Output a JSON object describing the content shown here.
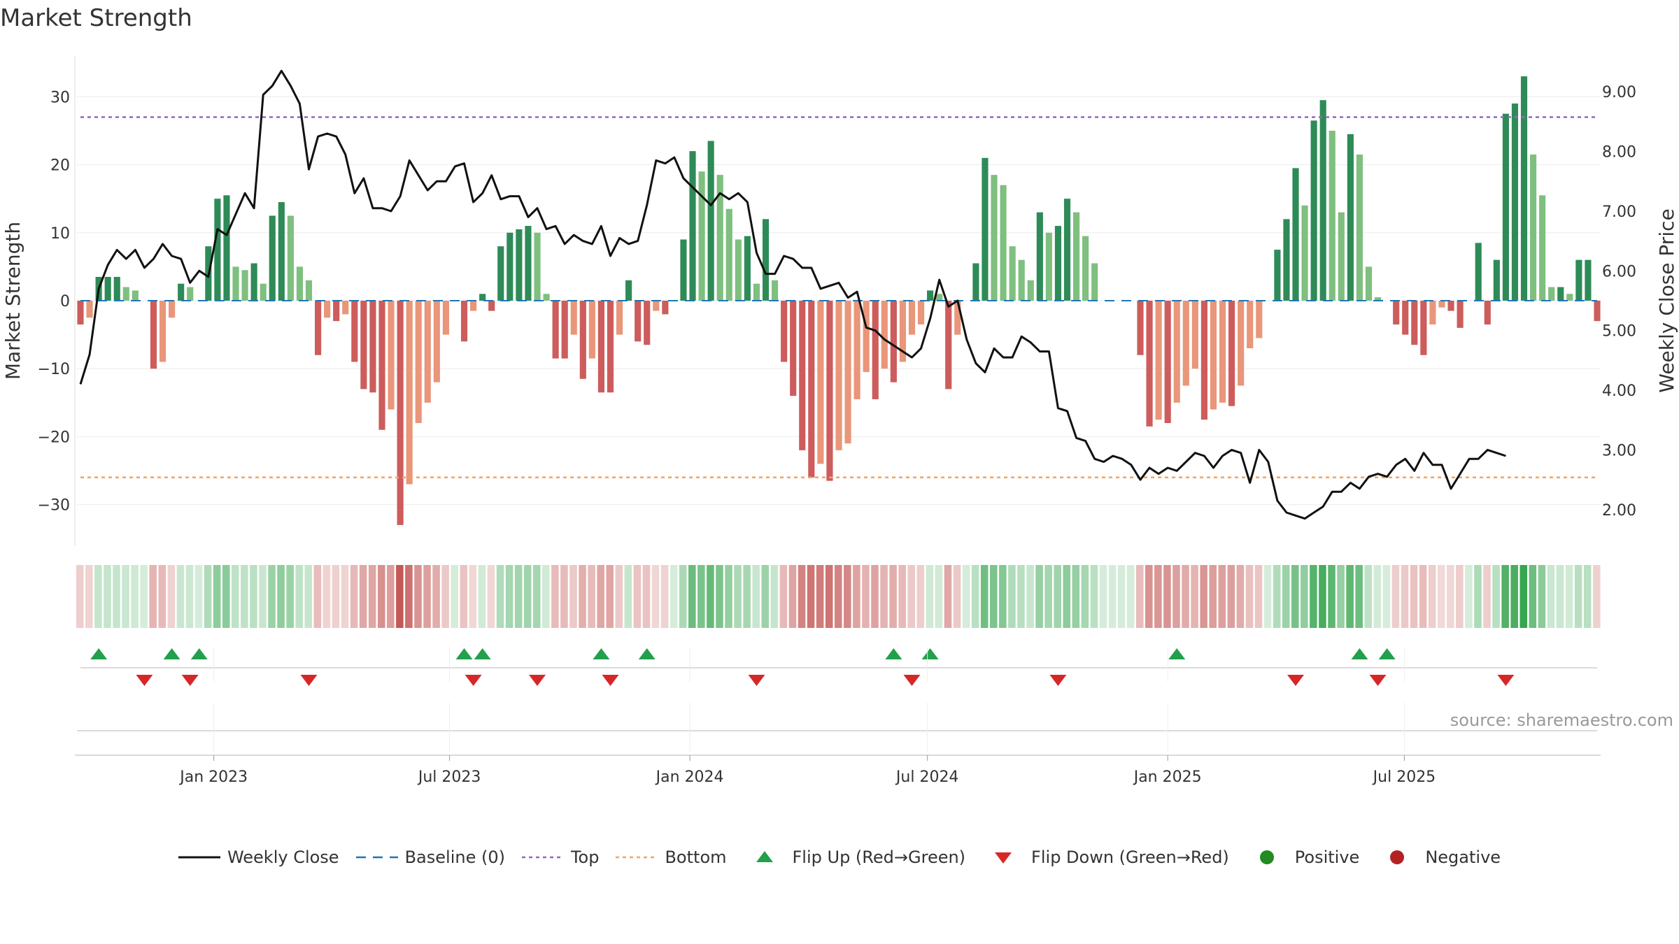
{
  "title": "Market Strength",
  "source": "source: sharemaestro.com",
  "colors": {
    "pos_strong": "#2e8b57",
    "pos_weak": "#7fbf7f",
    "neg_strong": "#cd5c5c",
    "neg_weak": "#e9967a",
    "line": "#111111",
    "baseline": "#1f77b4",
    "top": "#9467bd",
    "bottom": "#f4a460",
    "flip_up": "#22a04b",
    "flip_down": "#d62728",
    "positive": "#228b22",
    "negative": "#b22222"
  },
  "chart_data": {
    "type": "bar",
    "title": "Market Strength",
    "ylabel_left": "Market Strength",
    "ylabel_right": "Weekly Close Price",
    "ylim_left": [
      -36,
      36
    ],
    "ylim_right": [
      1.4,
      9.6
    ],
    "yticks_left": [
      30,
      20,
      10,
      0,
      -10,
      -20,
      -30
    ],
    "ytick_labels_left": [
      "30",
      "20",
      "10",
      "0",
      "−10",
      "−20",
      "−30"
    ],
    "yticks_right": [
      9.0,
      8.0,
      7.0,
      6.0,
      5.0,
      4.0,
      3.0,
      2.0
    ],
    "ytick_labels_right": [
      "9.00",
      "8.00",
      "7.00",
      "6.00",
      "5.00",
      "4.00",
      "3.00",
      "2.00"
    ],
    "x_start_week": 0,
    "xticks": [
      {
        "week": 14.6,
        "label": "Jan 2023"
      },
      {
        "week": 40.4,
        "label": "Jul 2023"
      },
      {
        "week": 66.7,
        "label": "Jan 2024"
      },
      {
        "week": 92.7,
        "label": "Jul 2024"
      },
      {
        "week": 119,
        "label": "Jan 2025"
      },
      {
        "week": 144.9,
        "label": "Jul 2025"
      }
    ],
    "top_level": 27,
    "bottom_level": -26,
    "strength": [
      -3.5,
      -2.5,
      3.5,
      3.5,
      3.5,
      2,
      1.5,
      0,
      -10,
      -9,
      -2.5,
      2.5,
      2,
      0,
      8,
      15,
      15.5,
      5,
      4.5,
      5.5,
      2.5,
      12.5,
      14.5,
      12.5,
      5,
      3,
      -8,
      -2.5,
      -3,
      -2,
      -9,
      -13,
      -13.5,
      -19,
      -16,
      -33,
      -27,
      -18,
      -15,
      -12,
      -5,
      0,
      -6,
      -1.5,
      1,
      -1.5,
      8,
      10,
      10.5,
      11,
      10,
      1,
      -8.5,
      -8.5,
      -5,
      -11.5,
      -8.5,
      -13.5,
      -13.5,
      -5,
      3,
      -6,
      -6.5,
      -1.5,
      -2,
      0,
      9,
      22,
      19,
      23.5,
      18.5,
      13.5,
      9,
      9.5,
      2.5,
      12,
      3,
      -9,
      -14,
      -22,
      -26,
      -24,
      -26.5,
      -22,
      -21,
      -14.5,
      -10.5,
      -14.5,
      -10,
      -12,
      -9,
      -5,
      -3.5,
      1.5,
      1,
      -13,
      -5,
      0,
      5.5,
      21,
      18.5,
      17,
      8,
      6,
      3,
      13,
      10,
      11,
      15,
      13,
      9.5,
      5.5,
      0,
      0,
      0,
      0,
      -8,
      -18.5,
      -17.5,
      -18,
      -15,
      -12.5,
      -10,
      -17.5,
      -16,
      -15,
      -15.5,
      -12.5,
      -7,
      -5.5,
      0,
      7.5,
      12,
      19.5,
      14,
      26.5,
      29.5,
      25,
      13,
      24.5,
      21.5,
      5,
      0.5,
      0,
      -3.5,
      -5,
      -6.5,
      -8,
      -3.5,
      -1,
      -1.5,
      -4,
      0,
      8.5,
      -3.5,
      6,
      27.5,
      29,
      33,
      21.5,
      15.5,
      2,
      2,
      1,
      6,
      6,
      -3
    ],
    "flip_up_weeks": [
      2,
      10,
      13,
      42,
      44,
      57,
      62,
      89,
      93,
      120,
      140,
      143
    ],
    "flip_down_weeks": [
      7,
      12,
      25,
      43,
      50,
      58,
      74,
      91,
      107,
      133,
      142,
      156
    ],
    "close": [
      [
        0,
        4.1
      ],
      [
        1,
        4.6
      ],
      [
        2,
        5.7
      ],
      [
        3,
        6.1
      ],
      [
        4,
        6.35
      ],
      [
        5,
        6.2
      ],
      [
        6,
        6.35
      ],
      [
        7,
        6.05
      ],
      [
        8,
        6.2
      ],
      [
        9,
        6.45
      ],
      [
        10,
        6.25
      ],
      [
        11,
        6.2
      ],
      [
        12,
        5.8
      ],
      [
        13,
        6.0
      ],
      [
        14,
        5.9
      ],
      [
        15,
        6.7
      ],
      [
        16,
        6.6
      ],
      [
        17,
        6.95
      ],
      [
        18,
        7.3
      ],
      [
        19,
        7.05
      ],
      [
        20,
        8.95
      ],
      [
        21,
        9.1
      ],
      [
        22,
        9.35
      ],
      [
        23,
        9.1
      ],
      [
        24,
        8.8
      ],
      [
        25,
        7.7
      ],
      [
        26,
        8.25
      ],
      [
        27,
        8.3
      ],
      [
        28,
        8.25
      ],
      [
        29,
        7.95
      ],
      [
        30,
        7.3
      ],
      [
        31,
        7.55
      ],
      [
        32,
        7.05
      ],
      [
        33,
        7.05
      ],
      [
        34,
        7.0
      ],
      [
        35,
        7.25
      ],
      [
        36,
        7.85
      ],
      [
        37,
        7.6
      ],
      [
        38,
        7.35
      ],
      [
        39,
        7.5
      ],
      [
        40,
        7.5
      ],
      [
        41,
        7.75
      ],
      [
        42,
        7.8
      ],
      [
        43,
        7.15
      ],
      [
        44,
        7.3
      ],
      [
        45,
        7.6
      ],
      [
        46,
        7.2
      ],
      [
        47,
        7.25
      ],
      [
        48,
        7.25
      ],
      [
        49,
        6.9
      ],
      [
        50,
        7.05
      ],
      [
        51,
        6.7
      ],
      [
        52,
        6.75
      ],
      [
        53,
        6.45
      ],
      [
        54,
        6.6
      ],
      [
        55,
        6.5
      ],
      [
        56,
        6.45
      ],
      [
        57,
        6.75
      ],
      [
        58,
        6.25
      ],
      [
        59,
        6.55
      ],
      [
        60,
        6.45
      ],
      [
        61,
        6.5
      ],
      [
        62,
        7.1
      ],
      [
        63,
        7.85
      ],
      [
        64,
        7.8
      ],
      [
        65,
        7.9
      ],
      [
        66,
        7.55
      ],
      [
        67,
        7.4
      ],
      [
        68,
        7.25
      ],
      [
        69,
        7.1
      ],
      [
        70,
        7.3
      ],
      [
        71,
        7.2
      ],
      [
        72,
        7.3
      ],
      [
        73,
        7.15
      ],
      [
        74,
        6.3
      ],
      [
        75,
        5.95
      ],
      [
        76,
        5.95
      ],
      [
        77,
        6.25
      ],
      [
        78,
        6.2
      ],
      [
        79,
        6.05
      ],
      [
        80,
        6.05
      ],
      [
        81,
        5.7
      ],
      [
        82,
        5.75
      ],
      [
        83,
        5.8
      ],
      [
        84,
        5.55
      ],
      [
        85,
        5.65
      ],
      [
        86,
        5.05
      ],
      [
        87,
        5.0
      ],
      [
        88,
        4.85
      ],
      [
        89,
        4.75
      ],
      [
        90,
        4.65
      ],
      [
        91,
        4.55
      ],
      [
        92,
        4.7
      ],
      [
        93,
        5.2
      ],
      [
        94,
        5.85
      ],
      [
        95,
        5.4
      ],
      [
        96,
        5.5
      ],
      [
        97,
        4.85
      ],
      [
        98,
        4.45
      ],
      [
        99,
        4.3
      ],
      [
        100,
        4.7
      ],
      [
        101,
        4.55
      ],
      [
        102,
        4.55
      ],
      [
        103,
        4.9
      ],
      [
        104,
        4.8
      ],
      [
        105,
        4.65
      ],
      [
        106,
        4.65
      ],
      [
        107,
        3.7
      ],
      [
        108,
        3.65
      ],
      [
        109,
        3.2
      ],
      [
        110,
        3.15
      ],
      [
        111,
        2.85
      ],
      [
        112,
        2.8
      ],
      [
        113,
        2.9
      ],
      [
        114,
        2.85
      ],
      [
        115,
        2.75
      ],
      [
        116,
        2.5
      ],
      [
        117,
        2.7
      ],
      [
        118,
        2.6
      ],
      [
        119,
        2.7
      ],
      [
        120,
        2.65
      ],
      [
        121,
        2.8
      ],
      [
        122,
        2.95
      ],
      [
        123,
        2.9
      ],
      [
        124,
        2.7
      ],
      [
        125,
        2.9
      ],
      [
        126,
        3.0
      ],
      [
        127,
        2.95
      ],
      [
        128,
        2.45
      ],
      [
        129,
        3.0
      ],
      [
        130,
        2.8
      ],
      [
        131,
        2.15
      ],
      [
        132,
        1.95
      ],
      [
        133,
        1.9
      ],
      [
        134,
        1.85
      ],
      [
        135,
        1.95
      ],
      [
        136,
        2.05
      ],
      [
        137,
        2.3
      ],
      [
        138,
        2.3
      ],
      [
        139,
        2.45
      ],
      [
        140,
        2.35
      ],
      [
        141,
        2.55
      ],
      [
        142,
        2.6
      ],
      [
        143,
        2.55
      ],
      [
        144,
        2.75
      ],
      [
        145,
        2.85
      ],
      [
        146,
        2.65
      ],
      [
        147,
        2.95
      ],
      [
        148,
        2.75
      ],
      [
        149,
        2.75
      ],
      [
        150,
        2.35
      ],
      [
        151,
        2.6
      ],
      [
        152,
        2.85
      ],
      [
        153,
        2.85
      ],
      [
        154,
        3.0
      ],
      [
        155,
        2.95
      ],
      [
        156,
        2.9
      ]
    ]
  },
  "legend": [
    {
      "key": "weekly_close",
      "label": "Weekly Close"
    },
    {
      "key": "baseline",
      "label": "Baseline (0)"
    },
    {
      "key": "top",
      "label": "Top"
    },
    {
      "key": "bottom",
      "label": "Bottom"
    },
    {
      "key": "flip_up",
      "label": "Flip Up (Red→Green)"
    },
    {
      "key": "flip_down",
      "label": "Flip Down (Green→Red)"
    },
    {
      "key": "positive",
      "label": "Positive"
    },
    {
      "key": "negative",
      "label": "Negative"
    }
  ]
}
